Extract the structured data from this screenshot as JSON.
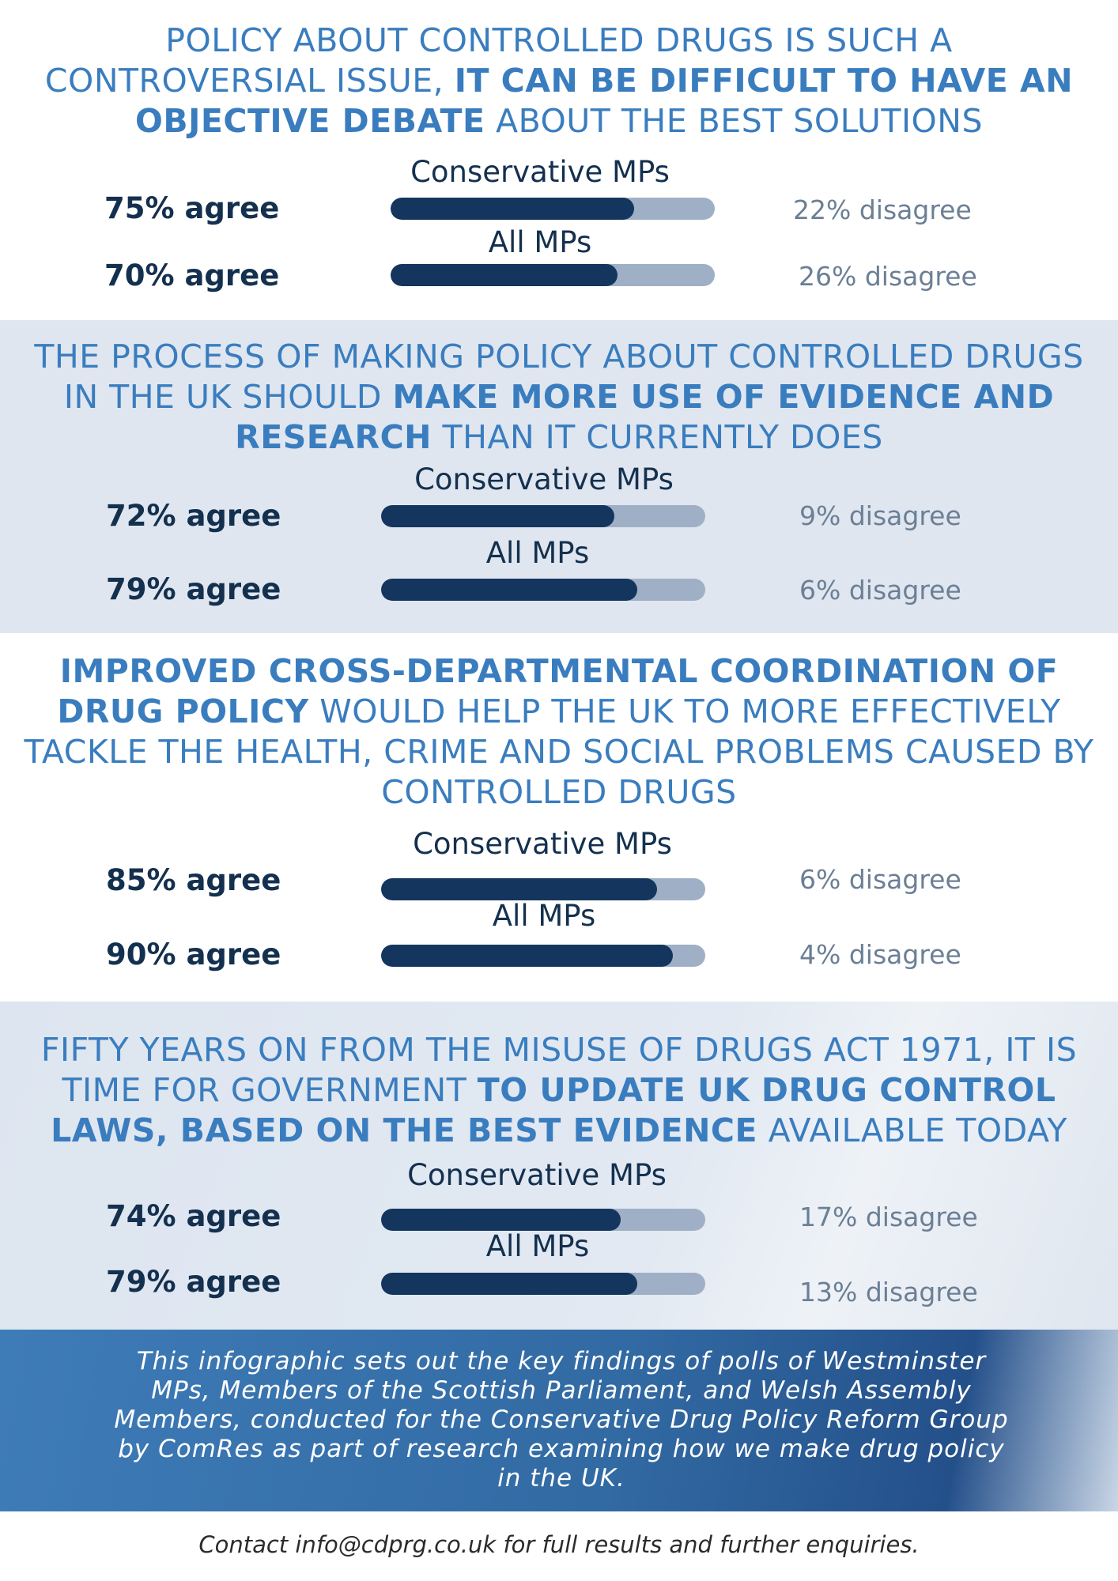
{
  "chart_data": [
    {
      "type": "bar",
      "title_parts": [
        {
          "text": "POLICY ABOUT CONTROLLED DRUGS IS SUCH A CONTROVERSIAL ISSUE, ",
          "bold": false
        },
        {
          "text": "IT CAN BE DIFFICULT TO HAVE AN OBJECTIVE DEBATE",
          "bold": true
        },
        {
          "text": " ABOUT THE BEST SOLUTIONS",
          "bold": false
        }
      ],
      "categories": [
        "Conservative MPs",
        "All MPs"
      ],
      "agree": [
        75,
        70
      ],
      "disagree": [
        22,
        26
      ],
      "agree_labels": [
        "75% agree",
        "70% agree"
      ],
      "disagree_labels": [
        "22% disagree",
        "26% disagree"
      ],
      "xlim": [
        0,
        100
      ]
    },
    {
      "type": "bar",
      "title_parts": [
        {
          "text": "THE PROCESS OF MAKING POLICY ABOUT CONTROLLED DRUGS IN THE UK SHOULD ",
          "bold": false
        },
        {
          "text": "MAKE MORE USE OF EVIDENCE AND RESEARCH",
          "bold": true
        },
        {
          "text": " THAN IT CURRENTLY DOES",
          "bold": false
        }
      ],
      "categories": [
        "Conservative MPs",
        "All MPs"
      ],
      "agree": [
        72,
        79
      ],
      "disagree": [
        9,
        6
      ],
      "agree_labels": [
        "72% agree",
        "79% agree"
      ],
      "disagree_labels": [
        "9% disagree",
        "6% disagree"
      ],
      "xlim": [
        0,
        100
      ]
    },
    {
      "type": "bar",
      "title_parts": [
        {
          "text": "IMPROVED CROSS-DEPARTMENTAL COORDINATION OF DRUG POLICY",
          "bold": true
        },
        {
          "text": " WOULD HELP THE UK TO MORE EFFECTIVELY TACKLE THE HEALTH, CRIME AND SOCIAL PROBLEMS CAUSED BY CONTROLLED DRUGS",
          "bold": false
        }
      ],
      "categories": [
        "Conservative MPs",
        "All MPs"
      ],
      "agree": [
        85,
        90
      ],
      "disagree": [
        6,
        4
      ],
      "agree_labels": [
        "85% agree",
        "90% agree"
      ],
      "disagree_labels": [
        "6% disagree",
        "4% disagree"
      ],
      "xlim": [
        0,
        100
      ]
    },
    {
      "type": "bar",
      "title_parts": [
        {
          "text": "FIFTY YEARS ON FROM THE MISUSE OF DRUGS ACT 1971, IT IS TIME FOR GOVERNMENT ",
          "bold": false
        },
        {
          "text": "TO UPDATE UK DRUG CONTROL LAWS, BASED ON THE BEST EVIDENCE",
          "bold": true
        },
        {
          "text": " AVAILABLE TODAY",
          "bold": false
        }
      ],
      "categories": [
        "Conservative MPs",
        "All MPs"
      ],
      "agree": [
        74,
        79
      ],
      "disagree": [
        17,
        13
      ],
      "agree_labels": [
        "74% agree",
        "79% agree"
      ],
      "disagree_labels": [
        "17% disagree",
        "13% disagree"
      ],
      "xlim": [
        0,
        100
      ]
    }
  ],
  "footer": {
    "text": "This infographic sets out the key findings of polls of Westminster MPs, Members of the Scottish Parliament, and Welsh Assembly Members, conducted for the Conservative Drug Policy Reform Group by ComRes as part of research examining how we make drug policy in the UK.",
    "contact": "Contact info@cdprg.co.uk for full results and further enquiries."
  },
  "colors": {
    "title_blue": "#3a7dbf",
    "agree_fill": "#14365e",
    "bar_track": "#9fb0c6",
    "band_light": "#dfe6f0",
    "footer_blue": "#326aa3"
  }
}
